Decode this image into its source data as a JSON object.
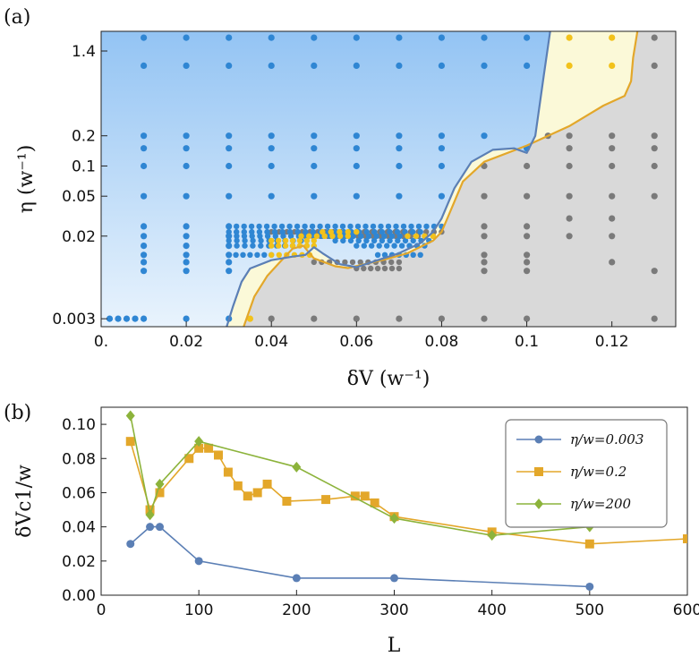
{
  "chart_data": [
    {
      "panel_label": "(a)",
      "type": "scatter",
      "xlabel": "δV (w⁻¹)",
      "ylabel": "η (w⁻¹)",
      "xlim": [
        0,
        0.135
      ],
      "ylim": [
        0.0025,
        2.2
      ],
      "yscale": "log",
      "x_ticks": [
        {
          "v": 0,
          "t": "0."
        },
        {
          "v": 0.02,
          "t": "0.02"
        },
        {
          "v": 0.04,
          "t": "0.04"
        },
        {
          "v": 0.06,
          "t": "0.06"
        },
        {
          "v": 0.08,
          "t": "0.08"
        },
        {
          "v": 0.1,
          "t": "0.1"
        },
        {
          "v": 0.12,
          "t": "0.12"
        }
      ],
      "y_ticks": [
        {
          "v": 0.003,
          "t": "0.003"
        },
        {
          "v": 0.02,
          "t": "0.02"
        },
        {
          "v": 0.05,
          "t": "0.05"
        },
        {
          "v": 0.1,
          "t": "0.1"
        },
        {
          "v": 0.2,
          "t": "0.2"
        },
        {
          "v": 1.4,
          "t": "1.4"
        }
      ],
      "regions": [
        {
          "name": "blue-region",
          "color": "#7fb8f2",
          "boundary_color": "#5b7fb5"
        },
        {
          "name": "yellow-region",
          "color": "#fbf9d8",
          "boundary_color": "#e3a72a"
        },
        {
          "name": "gray-region",
          "color": "#d9d9d9"
        }
      ],
      "blue_boundary": [
        [
          0.0295,
          0.0025
        ],
        [
          0.031,
          0.004
        ],
        [
          0.033,
          0.007
        ],
        [
          0.035,
          0.0095
        ],
        [
          0.04,
          0.0115
        ],
        [
          0.045,
          0.0125
        ],
        [
          0.048,
          0.013
        ],
        [
          0.05,
          0.0155
        ],
        [
          0.052,
          0.0135
        ],
        [
          0.056,
          0.0105
        ],
        [
          0.06,
          0.0098
        ],
        [
          0.065,
          0.0115
        ],
        [
          0.07,
          0.0135
        ],
        [
          0.075,
          0.017
        ],
        [
          0.078,
          0.022
        ],
        [
          0.08,
          0.03
        ],
        [
          0.083,
          0.06
        ],
        [
          0.087,
          0.11
        ],
        [
          0.092,
          0.145
        ],
        [
          0.097,
          0.15
        ],
        [
          0.1,
          0.135
        ],
        [
          0.102,
          0.2
        ],
        [
          0.104,
          0.8
        ],
        [
          0.1055,
          2.2
        ]
      ],
      "yellow_boundary": [
        [
          0.0335,
          0.0025
        ],
        [
          0.036,
          0.005
        ],
        [
          0.039,
          0.008
        ],
        [
          0.042,
          0.011
        ],
        [
          0.045,
          0.015
        ],
        [
          0.0475,
          0.016
        ],
        [
          0.05,
          0.012
        ],
        [
          0.055,
          0.01
        ],
        [
          0.058,
          0.0096
        ],
        [
          0.062,
          0.0105
        ],
        [
          0.067,
          0.0118
        ],
        [
          0.072,
          0.0135
        ],
        [
          0.078,
          0.018
        ],
        [
          0.08,
          0.022
        ],
        [
          0.082,
          0.035
        ],
        [
          0.085,
          0.07
        ],
        [
          0.09,
          0.11
        ],
        [
          0.1,
          0.16
        ],
        [
          0.11,
          0.25
        ],
        [
          0.118,
          0.4
        ],
        [
          0.123,
          0.5
        ],
        [
          0.1245,
          0.7
        ],
        [
          0.125,
          1.2
        ],
        [
          0.126,
          2.2
        ]
      ],
      "blue_points": [
        [
          0.002,
          0.003
        ],
        [
          0.004,
          0.003
        ],
        [
          0.006,
          0.003
        ],
        [
          0.008,
          0.003
        ],
        [
          0.01,
          0.003
        ],
        [
          0.02,
          0.003
        ],
        [
          0.03,
          0.003
        ],
        [
          0.01,
          0.009
        ],
        [
          0.01,
          0.011
        ],
        [
          0.01,
          0.013
        ],
        [
          0.01,
          0.016
        ],
        [
          0.01,
          0.02
        ],
        [
          0.01,
          0.025
        ],
        [
          0.01,
          0.05
        ],
        [
          0.01,
          0.1
        ],
        [
          0.01,
          0.15
        ],
        [
          0.01,
          0.2
        ],
        [
          0.01,
          1.0
        ],
        [
          0.01,
          1.9
        ],
        [
          0.02,
          0.009
        ],
        [
          0.02,
          0.011
        ],
        [
          0.02,
          0.013
        ],
        [
          0.02,
          0.016
        ],
        [
          0.02,
          0.02
        ],
        [
          0.02,
          0.025
        ],
        [
          0.02,
          0.05
        ],
        [
          0.02,
          0.1
        ],
        [
          0.02,
          0.15
        ],
        [
          0.02,
          0.2
        ],
        [
          0.02,
          1.0
        ],
        [
          0.02,
          1.9
        ],
        [
          0.03,
          0.009
        ],
        [
          0.03,
          0.011
        ],
        [
          0.03,
          0.013
        ],
        [
          0.03,
          0.016
        ],
        [
          0.03,
          0.02
        ],
        [
          0.03,
          0.025
        ],
        [
          0.03,
          0.05
        ],
        [
          0.03,
          0.1
        ],
        [
          0.03,
          0.15
        ],
        [
          0.03,
          0.2
        ],
        [
          0.03,
          1.0
        ],
        [
          0.03,
          1.9
        ],
        [
          0.04,
          0.05
        ],
        [
          0.04,
          0.1
        ],
        [
          0.04,
          0.15
        ],
        [
          0.04,
          0.2
        ],
        [
          0.04,
          1.0
        ],
        [
          0.04,
          1.9
        ],
        [
          0.05,
          0.05
        ],
        [
          0.05,
          0.1
        ],
        [
          0.05,
          0.15
        ],
        [
          0.05,
          0.2
        ],
        [
          0.05,
          1.0
        ],
        [
          0.05,
          1.9
        ],
        [
          0.06,
          0.05
        ],
        [
          0.06,
          0.1
        ],
        [
          0.06,
          0.15
        ],
        [
          0.06,
          0.2
        ],
        [
          0.06,
          1.0
        ],
        [
          0.06,
          1.9
        ],
        [
          0.07,
          0.05
        ],
        [
          0.07,
          0.1
        ],
        [
          0.07,
          0.15
        ],
        [
          0.07,
          0.2
        ],
        [
          0.07,
          1.0
        ],
        [
          0.07,
          1.9
        ],
        [
          0.08,
          0.05
        ],
        [
          0.08,
          0.1
        ],
        [
          0.08,
          0.15
        ],
        [
          0.08,
          0.2
        ],
        [
          0.08,
          1.0
        ],
        [
          0.08,
          1.9
        ],
        [
          0.09,
          0.2
        ],
        [
          0.09,
          1.0
        ],
        [
          0.09,
          1.9
        ],
        [
          0.1,
          1.0
        ],
        [
          0.1,
          1.9
        ],
        [
          0.1,
          0.15
        ]
      ],
      "yellow_points": [
        [
          0.035,
          0.003
        ],
        [
          0.11,
          1.0
        ],
        [
          0.11,
          1.9
        ],
        [
          0.12,
          1.0
        ],
        [
          0.12,
          1.9
        ]
      ],
      "gray_points": [
        [
          0.04,
          0.003
        ],
        [
          0.05,
          0.003
        ],
        [
          0.06,
          0.003
        ],
        [
          0.07,
          0.003
        ],
        [
          0.08,
          0.003
        ],
        [
          0.09,
          0.003
        ],
        [
          0.1,
          0.003
        ],
        [
          0.13,
          0.003
        ],
        [
          0.09,
          0.009
        ],
        [
          0.1,
          0.009
        ],
        [
          0.13,
          0.009
        ],
        [
          0.09,
          0.011
        ],
        [
          0.1,
          0.011
        ],
        [
          0.09,
          0.013
        ],
        [
          0.1,
          0.013
        ],
        [
          0.12,
          0.011
        ],
        [
          0.09,
          0.02
        ],
        [
          0.1,
          0.02
        ],
        [
          0.11,
          0.02
        ],
        [
          0.12,
          0.02
        ],
        [
          0.09,
          0.025
        ],
        [
          0.1,
          0.025
        ],
        [
          0.11,
          0.03
        ],
        [
          0.12,
          0.03
        ],
        [
          0.09,
          0.05
        ],
        [
          0.1,
          0.05
        ],
        [
          0.11,
          0.05
        ],
        [
          0.12,
          0.05
        ],
        [
          0.13,
          0.05
        ],
        [
          0.09,
          0.1
        ],
        [
          0.1,
          0.1
        ],
        [
          0.11,
          0.1
        ],
        [
          0.12,
          0.1
        ],
        [
          0.13,
          0.1
        ],
        [
          0.105,
          0.2
        ],
        [
          0.11,
          0.2
        ],
        [
          0.12,
          0.2
        ],
        [
          0.13,
          0.2
        ],
        [
          0.11,
          0.15
        ],
        [
          0.12,
          0.15
        ],
        [
          0.13,
          0.15
        ],
        [
          0.13,
          1.0
        ],
        [
          0.13,
          1.9
        ]
      ],
      "blue_rows": [
        {
          "x0": 0.03,
          "x1": 0.08,
          "y": 0.025
        },
        {
          "x0": 0.03,
          "x1": 0.075,
          "y": 0.022
        },
        {
          "x0": 0.03,
          "x1": 0.072,
          "y": 0.02
        },
        {
          "x0": 0.03,
          "x1": 0.047,
          "y": 0.018
        },
        {
          "x0": 0.03,
          "x1": 0.045,
          "y": 0.016
        },
        {
          "x0": 0.03,
          "x1": 0.04,
          "y": 0.013
        },
        {
          "x0": 0.055,
          "x1": 0.077,
          "y": 0.018
        },
        {
          "x0": 0.06,
          "x1": 0.076,
          "y": 0.016
        },
        {
          "x0": 0.065,
          "x1": 0.075,
          "y": 0.013
        }
      ],
      "yellow_rows": [
        {
          "x0": 0.04,
          "x1": 0.05,
          "y": 0.018
        },
        {
          "x0": 0.04,
          "x1": 0.05,
          "y": 0.016
        },
        {
          "x0": 0.04,
          "x1": 0.049,
          "y": 0.013
        },
        {
          "x0": 0.047,
          "x1": 0.058,
          "y": 0.02
        },
        {
          "x0": 0.072,
          "x1": 0.078,
          "y": 0.02
        },
        {
          "x0": 0.052,
          "x1": 0.06,
          "y": 0.022
        }
      ],
      "gray_rows": [
        {
          "x0": 0.04,
          "x1": 0.08,
          "y": 0.022
        },
        {
          "x0": 0.048,
          "x1": 0.078,
          "y": 0.02
        },
        {
          "x0": 0.05,
          "x1": 0.07,
          "y": 0.011
        },
        {
          "x0": 0.06,
          "x1": 0.07,
          "y": 0.0095
        }
      ]
    },
    {
      "panel_label": "(b)",
      "type": "line",
      "xlabel": "L",
      "ylabel": "δVc1/w",
      "xlim": [
        0,
        600
      ],
      "ylim": [
        0,
        0.11
      ],
      "x_ticks": [
        0,
        100,
        200,
        300,
        400,
        500,
        600
      ],
      "y_ticks": [
        0,
        0.02,
        0.04,
        0.06,
        0.08,
        0.1
      ],
      "y_tick_labels": [
        "0.00",
        "0.02",
        "0.04",
        "0.06",
        "0.08",
        "0.10"
      ],
      "legend_position": "top-right",
      "series": [
        {
          "name": "η/w=0.003",
          "color": "#5b7fb5",
          "marker": "circle",
          "x": [
            30,
            50,
            60,
            100,
            200,
            300,
            500
          ],
          "y": [
            0.03,
            0.04,
            0.04,
            0.02,
            0.01,
            0.01,
            0.005
          ]
        },
        {
          "name": "η/w=0.2",
          "color": "#e3a72a",
          "marker": "square",
          "x": [
            30,
            50,
            60,
            90,
            100,
            110,
            120,
            130,
            140,
            150,
            160,
            170,
            190,
            230,
            260,
            270,
            280,
            300,
            400,
            500,
            600
          ],
          "y": [
            0.09,
            0.05,
            0.06,
            0.08,
            0.086,
            0.086,
            0.082,
            0.072,
            0.064,
            0.058,
            0.06,
            0.065,
            0.055,
            0.056,
            0.058,
            0.058,
            0.054,
            0.046,
            0.037,
            0.03,
            0.033
          ]
        },
        {
          "name": "η/w=200",
          "color": "#8cb33b",
          "marker": "diamond",
          "x": [
            30,
            50,
            60,
            100,
            200,
            300,
            400,
            500
          ],
          "y": [
            0.105,
            0.047,
            0.065,
            0.09,
            0.075,
            0.045,
            0.035,
            0.04
          ]
        }
      ]
    }
  ]
}
